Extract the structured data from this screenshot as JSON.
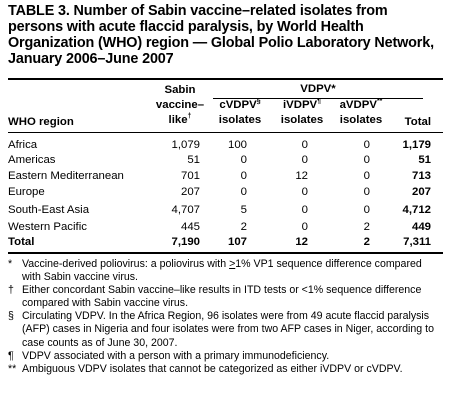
{
  "title": "TABLE 3. Number of Sabin vaccine–related isolates from persons with acute flaccid paralysis, by World Health Organization (WHO) region — Global Polio Laboratory Network, January 2006–June 2007",
  "header": {
    "region": "WHO region",
    "sabin_1": "Sabin",
    "sabin_2": "vaccine–",
    "sabin_3": "like",
    "sabin_mark": "†",
    "vdpv": "VDPV*",
    "cvdpv_1": "cVDPV",
    "cvdpv_mark": "§",
    "cvdpv_2": "isolates",
    "ivdpv_1": "iVDPV",
    "ivdpv_mark": "¶",
    "ivdpv_2": "isolates",
    "avdpv_1": "aVDPV",
    "avdpv_mark": "**",
    "avdpv_2": "isolates",
    "total": "Total"
  },
  "rows": [
    {
      "region": "Africa",
      "sabin": "1,079",
      "cvdpv": "100",
      "ivdpv": "0",
      "avdpv": "0",
      "total": "1,179"
    },
    {
      "region": "Americas",
      "sabin": "51",
      "cvdpv": "0",
      "ivdpv": "0",
      "avdpv": "0",
      "total": "51"
    },
    {
      "region": "Eastern Mediterranean",
      "sabin": "701",
      "cvdpv": "0",
      "ivdpv": "12",
      "avdpv": "0",
      "total": "713"
    },
    {
      "region": "Europe",
      "sabin": "207",
      "cvdpv": "0",
      "ivdpv": "0",
      "avdpv": "0",
      "total": "207"
    },
    {
      "region": "South-East Asia",
      "sabin": "4,707",
      "cvdpv": "5",
      "ivdpv": "0",
      "avdpv": "0",
      "total": "4,712"
    },
    {
      "region": "Western Pacific",
      "sabin": "445",
      "cvdpv": "2",
      "ivdpv": "0",
      "avdpv": "2",
      "total": "449"
    }
  ],
  "total_row": {
    "region": "Total",
    "sabin": "7,190",
    "cvdpv": "107",
    "ivdpv": "12",
    "avdpv": "2",
    "total": "7,311"
  },
  "footnotes": [
    {
      "mark": "*",
      "text_a": "Vaccine-derived poliovirus: a poliovirus with ",
      "text_u": ">",
      "text_b": "1% VP1 sequence difference compared with Sabin vaccine virus."
    },
    {
      "mark": "†",
      "text": "Either concordant Sabin vaccine–like results in ITD tests or <1% sequence difference compared with Sabin vaccine virus."
    },
    {
      "mark": "§",
      "text": "Circulating VDPV. In the Africa Region, 96 isolates were from 49 acute flaccid paralysis (AFP) cases in Nigeria and four isolates were from two AFP cases in Niger, according to case counts as of June 30, 2007."
    },
    {
      "mark": "¶",
      "text": "VDPV associated with a person with a primary immunodeficiency."
    },
    {
      "mark": "**",
      "text": "Ambiguous VDPV isolates that cannot be categorized as either iVDPV or cVDPV."
    }
  ]
}
